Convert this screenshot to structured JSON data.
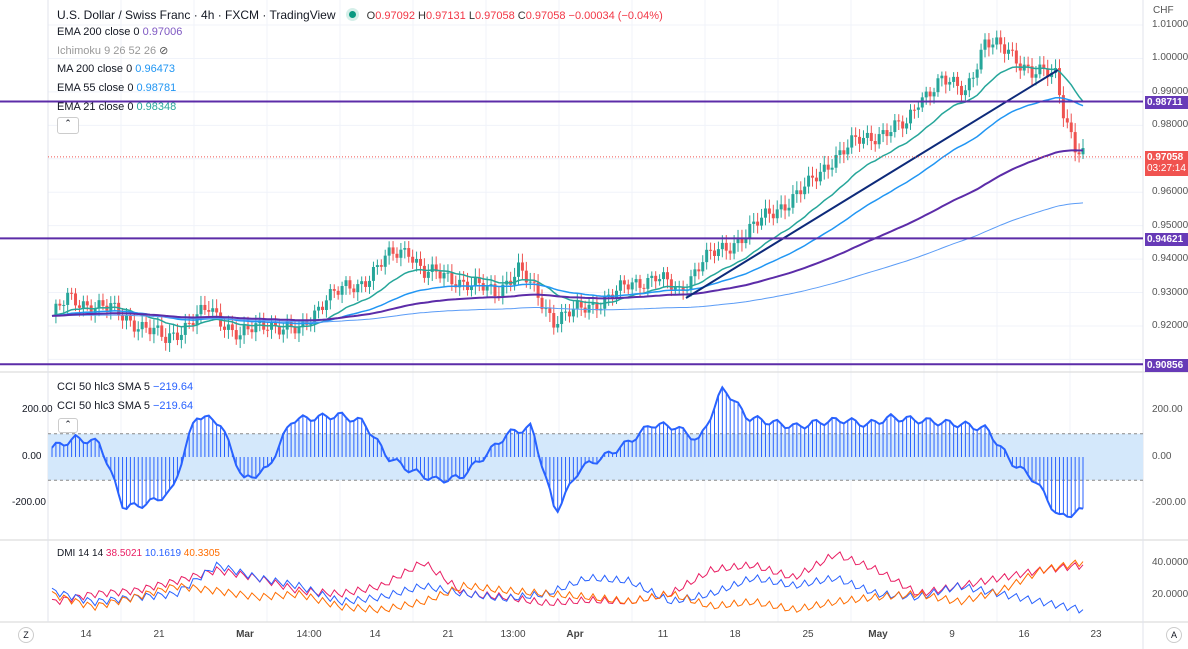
{
  "header": {
    "title": "U.S. Dollar / Swiss Franc · 4h · FXCM · TradingView",
    "open_label": "O",
    "open": "0.97092",
    "high_label": "H",
    "high": "0.97131",
    "low_label": "L",
    "low": "0.97058",
    "close_label": "C",
    "close": "0.97058",
    "change": "−0.00034 (−0.04%)"
  },
  "indicators": [
    {
      "label": "EMA 200 close 0",
      "value": "0.97006",
      "color": "#7e57c2"
    },
    {
      "label": "Ichimoku 9 26 52 26",
      "value": "",
      "color": "#999"
    },
    {
      "label": "MA 200 close 0",
      "value": "0.96473",
      "color": "#2196f3"
    },
    {
      "label": "EMA 55 close 0",
      "value": "0.98781",
      "color": "#2196f3"
    },
    {
      "label": "EMA 21 close 0",
      "value": "0.98348",
      "color": "#26a69a"
    }
  ],
  "price_axis": {
    "currency": "CHF",
    "ticks": [
      "1.01000",
      "1.00000",
      "0.99000",
      "0.98000",
      "0.96000",
      "0.95000",
      "0.94000",
      "0.93000",
      "0.92000"
    ],
    "tags": {
      "level1": "0.98711",
      "current": "0.97058",
      "countdown": "03:27:14",
      "level2": "0.94621",
      "level3": "0.90856"
    }
  },
  "cci": {
    "label1": "CCI 50 hlc3 SMA 5",
    "value1": "−219.64",
    "label2": "CCI 50 hlc3 SMA 5",
    "value2": "−219.64",
    "ticks": [
      "200.00",
      "0.00",
      "-200.00"
    ]
  },
  "dmi": {
    "label": "DMI 14 14",
    "plus": "38.5021",
    "minus": "10.1619",
    "adx": "40.3305",
    "ticks": [
      "40.0000",
      "20.0000"
    ]
  },
  "time_axis": {
    "labels": [
      "14",
      "21",
      "Mar",
      "14:00",
      "14",
      "21",
      "13:00",
      "Apr",
      "11",
      "18",
      "25",
      "May",
      "9",
      "16",
      "23"
    ],
    "left_btn": "Z",
    "right_btn": "A"
  },
  "chart_data": {
    "type": "line",
    "title": "USD/CHF 4h",
    "x": [
      0,
      4,
      15,
      29,
      40,
      48,
      55,
      63,
      70,
      78,
      85,
      91,
      95,
      103,
      113,
      119,
      128,
      135,
      141,
      147,
      154,
      160,
      166,
      172,
      177,
      185,
      193,
      199,
      205,
      212,
      218,
      221,
      227,
      233,
      238,
      244,
      250,
      256,
      258,
      260,
      261,
      263
    ],
    "close": [
      0.923,
      0.928,
      0.925,
      0.916,
      0.925,
      0.917,
      0.921,
      0.918,
      0.929,
      0.932,
      0.94,
      0.943,
      0.936,
      0.934,
      0.93,
      0.937,
      0.922,
      0.925,
      0.928,
      0.932,
      0.935,
      0.93,
      0.94,
      0.943,
      0.948,
      0.955,
      0.962,
      0.97,
      0.975,
      0.978,
      0.98,
      0.988,
      0.993,
      0.991,
      1.004,
      1.003,
      0.995,
      0.996,
      0.985,
      0.977,
      0.973,
      0.9706
    ],
    "support_lines": [
      0.98711,
      0.94621,
      0.90856
    ],
    "ylim": [
      0.906,
      1.012
    ],
    "cci": [
      40,
      80,
      60,
      -220,
      -200,
      -150,
      180,
      150,
      -100,
      -50,
      160,
      170,
      180,
      150,
      0,
      -60,
      -100,
      -90,
      0,
      100,
      130,
      -240,
      -50,
      0,
      60,
      140,
      130,
      70,
      300,
      170,
      150,
      130,
      150,
      160,
      140,
      170,
      160,
      150,
      140,
      120,
      -20,
      -100,
      -260,
      -230
    ],
    "dmi_plus": [
      15,
      20,
      22,
      28,
      35,
      30,
      22,
      20,
      25,
      40,
      20,
      18,
      14,
      16,
      15,
      20,
      35,
      38,
      30,
      45,
      35,
      20,
      25,
      30,
      35,
      38
    ],
    "dmi_minus": [
      22,
      15,
      18,
      20,
      38,
      30,
      25,
      15,
      18,
      25,
      20,
      17,
      20,
      30,
      28,
      15,
      20,
      30,
      25,
      30,
      20,
      18,
      25,
      20,
      15,
      10
    ],
    "adx": [
      20,
      12,
      18,
      25,
      22,
      18,
      20,
      12,
      10,
      15,
      25,
      22,
      20,
      18,
      15,
      20,
      12,
      15,
      10,
      15,
      18,
      20,
      15,
      22,
      35,
      40
    ]
  }
}
